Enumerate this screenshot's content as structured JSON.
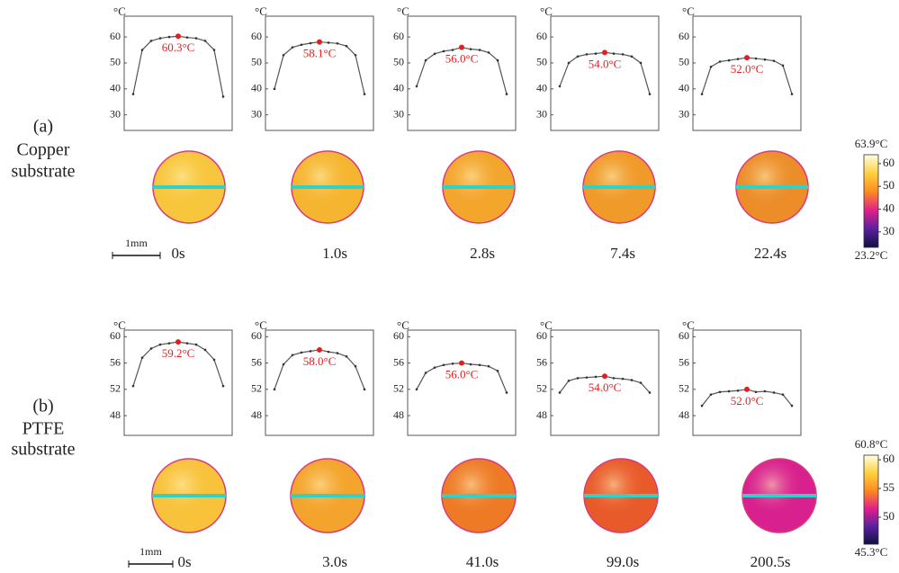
{
  "chart_data": [
    {
      "type": "line",
      "y_unit": "°C",
      "categories": [
        null,
        null,
        null,
        null,
        null,
        null,
        null,
        null,
        null,
        null,
        null
      ],
      "series": [
        {
          "color": "#555555",
          "values": [
            38,
            55,
            58.5,
            59.5,
            60,
            60.3,
            59.8,
            59.5,
            58.5,
            55,
            37
          ]
        }
      ],
      "ylim": [
        24,
        68
      ],
      "yticks": [
        30,
        40,
        50,
        60
      ],
      "annotation": {
        "value": 60.3,
        "label": "60.3°C",
        "color": "#e02020"
      }
    },
    {
      "type": "line",
      "y_unit": "°C",
      "categories": [
        null,
        null,
        null,
        null,
        null,
        null,
        null,
        null,
        null,
        null,
        null
      ],
      "series": [
        {
          "color": "#555555",
          "values": [
            40,
            53,
            56,
            57,
            57.6,
            58.1,
            57.8,
            57.5,
            56.5,
            53,
            38
          ]
        }
      ],
      "ylim": [
        24,
        68
      ],
      "yticks": [
        30,
        40,
        50,
        60
      ],
      "annotation": {
        "value": 58.1,
        "label": "58.1°C",
        "color": "#e02020"
      }
    },
    {
      "type": "line",
      "y_unit": "°C",
      "categories": [
        null,
        null,
        null,
        null,
        null,
        null,
        null,
        null,
        null,
        null,
        null
      ],
      "series": [
        {
          "color": "#555555",
          "values": [
            41,
            51,
            53.5,
            54.5,
            55,
            56.0,
            55.3,
            55,
            54,
            51,
            38
          ]
        }
      ],
      "ylim": [
        24,
        68
      ],
      "yticks": [
        30,
        40,
        50,
        60
      ],
      "annotation": {
        "value": 56.0,
        "label": "56.0°C",
        "color": "#e02020"
      }
    },
    {
      "type": "line",
      "y_unit": "°C",
      "categories": [
        null,
        null,
        null,
        null,
        null,
        null,
        null,
        null,
        null,
        null,
        null
      ],
      "series": [
        {
          "color": "#555555",
          "values": [
            41,
            50,
            52.5,
            53.3,
            53.6,
            54.0,
            53.6,
            53.3,
            52.5,
            50,
            38
          ]
        }
      ],
      "ylim": [
        24,
        68
      ],
      "yticks": [
        30,
        40,
        50,
        60
      ],
      "annotation": {
        "value": 54.0,
        "label": "54.0°C",
        "color": "#e02020"
      }
    },
    {
      "type": "line",
      "y_unit": "°C",
      "categories": [
        null,
        null,
        null,
        null,
        null,
        null,
        null,
        null,
        null,
        null,
        null
      ],
      "series": [
        {
          "color": "#555555",
          "values": [
            38,
            48.5,
            50.5,
            51,
            51.5,
            52.0,
            51.7,
            51.3,
            50.8,
            49,
            38
          ]
        }
      ],
      "ylim": [
        24,
        68
      ],
      "yticks": [
        30,
        40,
        50,
        60
      ],
      "annotation": {
        "value": 52.0,
        "label": "52.0°C",
        "color": "#e02020"
      }
    },
    {
      "type": "line",
      "y_unit": "°C",
      "categories": [
        null,
        null,
        null,
        null,
        null,
        null,
        null,
        null,
        null,
        null,
        null
      ],
      "series": [
        {
          "color": "#555555",
          "values": [
            52.5,
            56.8,
            58.2,
            58.8,
            59.0,
            59.2,
            59.0,
            58.8,
            58.0,
            56.5,
            52.5
          ]
        }
      ],
      "ylim": [
        45,
        61
      ],
      "yticks": [
        48,
        52,
        56,
        60
      ],
      "annotation": {
        "value": 59.2,
        "label": "59.2°C",
        "color": "#e02020"
      }
    },
    {
      "type": "line",
      "y_unit": "°C",
      "categories": [
        null,
        null,
        null,
        null,
        null,
        null,
        null,
        null,
        null,
        null,
        null
      ],
      "series": [
        {
          "color": "#555555",
          "values": [
            52,
            55.8,
            57.2,
            57.6,
            57.8,
            58.0,
            57.7,
            57.5,
            57.0,
            55.5,
            52
          ]
        }
      ],
      "ylim": [
        45,
        61
      ],
      "yticks": [
        48,
        52,
        56,
        60
      ],
      "annotation": {
        "value": 58.0,
        "label": "58.0°C",
        "color": "#e02020"
      }
    },
    {
      "type": "line",
      "y_unit": "°C",
      "categories": [
        null,
        null,
        null,
        null,
        null,
        null,
        null,
        null,
        null,
        null,
        null
      ],
      "series": [
        {
          "color": "#555555",
          "values": [
            52,
            54.5,
            55.3,
            55.7,
            55.9,
            56.0,
            55.8,
            55.7,
            55.5,
            54.8,
            51.5
          ]
        }
      ],
      "ylim": [
        45,
        61
      ],
      "yticks": [
        48,
        52,
        56,
        60
      ],
      "annotation": {
        "value": 56.0,
        "label": "56.0°C",
        "color": "#e02020"
      }
    },
    {
      "type": "line",
      "y_unit": "°C",
      "categories": [
        null,
        null,
        null,
        null,
        null,
        null,
        null,
        null,
        null,
        null,
        null
      ],
      "series": [
        {
          "color": "#555555",
          "values": [
            51.5,
            53.3,
            53.7,
            53.8,
            53.9,
            54.0,
            53.7,
            53.6,
            53.4,
            53,
            51.5
          ]
        }
      ],
      "ylim": [
        45,
        61
      ],
      "yticks": [
        48,
        52,
        56,
        60
      ],
      "annotation": {
        "value": 54.0,
        "label": "54.0°C",
        "color": "#e02020"
      }
    },
    {
      "type": "line",
      "y_unit": "°C",
      "categories": [
        null,
        null,
        null,
        null,
        null,
        null,
        null,
        null,
        null,
        null,
        null
      ],
      "series": [
        {
          "color": "#555555",
          "values": [
            49.5,
            51.2,
            51.6,
            51.7,
            51.8,
            52.0,
            51.6,
            51.7,
            51.5,
            51.2,
            49.5
          ]
        }
      ],
      "ylim": [
        45,
        61
      ],
      "yticks": [
        48,
        52,
        56,
        60
      ],
      "annotation": {
        "value": 52.0,
        "label": "52.0°C",
        "color": "#e02020"
      }
    }
  ],
  "panels": [
    {
      "label": "(a)",
      "substrate": [
        "Copper",
        "substrate"
      ],
      "scale_bar": "1mm",
      "times": [
        "0s",
        "1.0s",
        "2.8s",
        "7.4s",
        "22.4s"
      ],
      "image_colors": [
        "#f8c63c",
        "#f6b530",
        "#f3a52c",
        "#f09a2a",
        "#ec8d2a"
      ],
      "line_color": "#2fd2c9",
      "colorbar": {
        "max_label": "63.9°C",
        "min_label": "23.2°C",
        "lim": [
          23.2,
          63.9
        ],
        "ticks": [
          30,
          40,
          50,
          60
        ],
        "colors": [
          "#ffffe0",
          "#ffd040",
          "#ff8a20",
          "#e0208a",
          "#5a20a0",
          "#101040"
        ]
      }
    },
    {
      "label": "(b)",
      "substrate": [
        "PTFE",
        "substrate"
      ],
      "scale_bar": "1mm",
      "times": [
        "0s",
        "3.0s",
        "41.0s",
        "99.0s",
        "200.5s"
      ],
      "image_colors": [
        "#f8c23a",
        "#f4a42c",
        "#ee7a26",
        "#e95a2a",
        "#d8208e"
      ],
      "line_color": "#2fd2c9",
      "colorbar": {
        "max_label": "60.8°C",
        "min_label": "45.3°C",
        "lim": [
          45.3,
          60.8
        ],
        "ticks": [
          50,
          55,
          60
        ],
        "colors": [
          "#ffffe0",
          "#ffd040",
          "#ff8a20",
          "#e0208a",
          "#5a20a0",
          "#101040"
        ]
      }
    }
  ]
}
